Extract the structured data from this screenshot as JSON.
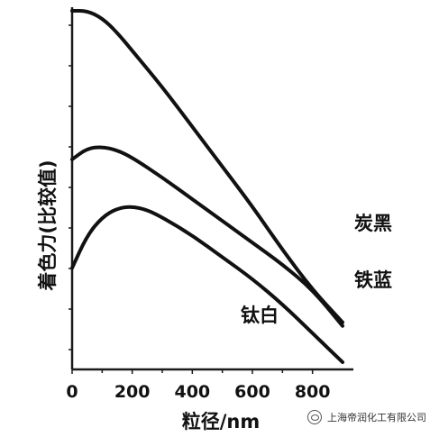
{
  "chart_data": {
    "type": "line",
    "title": "",
    "xlabel": "粒径/nm",
    "ylabel": "着色力(比较值)",
    "xlim": [
      0,
      900
    ],
    "ylim": [
      0,
      100
    ],
    "x_ticks": [
      0,
      200,
      400,
      600,
      800
    ],
    "y_ticks": [],
    "grid": false,
    "series": [
      {
        "name": "炭黑",
        "points": [
          [
            0,
            99
          ],
          [
            50,
            99
          ],
          [
            100,
            97
          ],
          [
            150,
            93
          ],
          [
            200,
            88
          ],
          [
            300,
            78
          ],
          [
            400,
            67
          ],
          [
            500,
            56
          ],
          [
            600,
            45
          ],
          [
            700,
            33
          ],
          [
            800,
            22
          ],
          [
            900,
            13
          ]
        ]
      },
      {
        "name": "铁蓝",
        "points": [
          [
            0,
            58
          ],
          [
            50,
            61
          ],
          [
            100,
            61.5
          ],
          [
            150,
            60.5
          ],
          [
            200,
            58.5
          ],
          [
            300,
            53
          ],
          [
            400,
            47
          ],
          [
            500,
            41
          ],
          [
            600,
            35
          ],
          [
            700,
            29
          ],
          [
            800,
            22
          ],
          [
            900,
            12
          ]
        ]
      },
      {
        "name": "钛白",
        "points": [
          [
            0,
            28
          ],
          [
            50,
            37
          ],
          [
            100,
            42
          ],
          [
            150,
            44.5
          ],
          [
            200,
            45
          ],
          [
            250,
            44
          ],
          [
            300,
            42
          ],
          [
            400,
            37
          ],
          [
            500,
            31
          ],
          [
            600,
            25
          ],
          [
            700,
            18
          ],
          [
            800,
            10
          ],
          [
            900,
            2
          ]
        ]
      }
    ]
  },
  "watermark": {
    "text": "上海帝润化工有限公司",
    "icon": "wechat-icon"
  }
}
